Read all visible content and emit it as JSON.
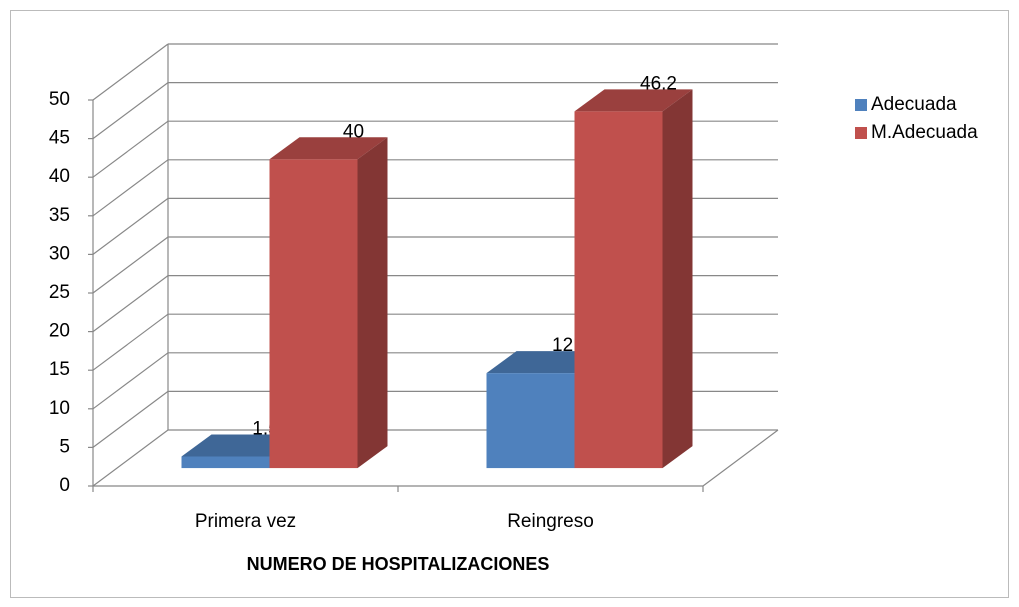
{
  "chart_data": {
    "type": "bar3d",
    "x_label": "NUMERO DE HOSPITALIZACIONES",
    "categories": [
      "Primera vez",
      "Reingreso"
    ],
    "series": [
      {
        "name": "Adecuada",
        "color": "#4f81bd",
        "values": [
          1.5,
          12.3
        ]
      },
      {
        "name": "M.Adecuada",
        "color": "#c0504d",
        "values": [
          40,
          46.2
        ]
      }
    ],
    "ylim": [
      0,
      50
    ],
    "yticks": [
      0,
      5,
      10,
      15,
      20,
      25,
      30,
      35,
      40,
      45,
      50
    ],
    "grid": true,
    "legend": "right"
  }
}
